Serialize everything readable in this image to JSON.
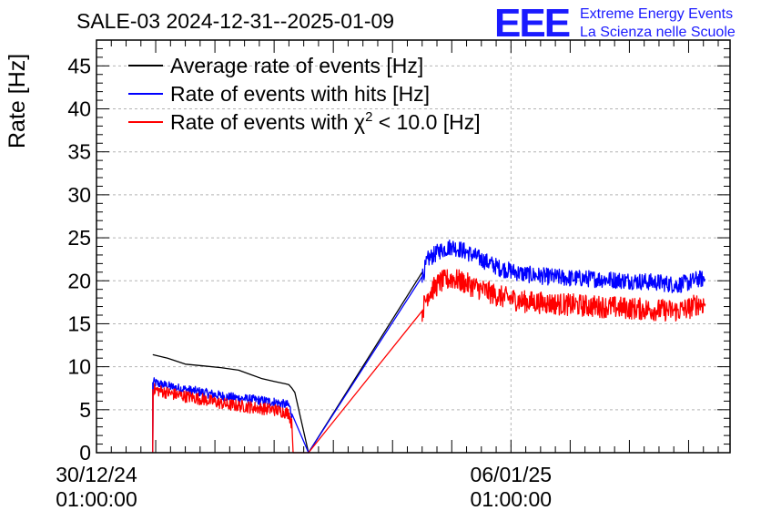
{
  "chart_data": {
    "type": "line",
    "title": "SALE-03 2024-12-31--2025-01-09",
    "ylabel": "Rate [Hz]",
    "xlabel": "",
    "ylim": [
      0,
      48
    ],
    "y_ticks": [
      0,
      5,
      10,
      15,
      20,
      25,
      30,
      35,
      40,
      45
    ],
    "x_tick_labels": [
      {
        "date": "30/12/24",
        "time": "01:00:00",
        "x": 0
      },
      {
        "date": "06/01/25",
        "time": "01:00:00",
        "x": 7
      }
    ],
    "xlim": [
      0,
      10.7
    ],
    "xunit": "days since 30/12/24 01:00:00",
    "grid": true,
    "legend_position": "top-left",
    "legend_entries": [
      "Average rate of events [Hz]",
      "Rate of events with hits [Hz]",
      "Rate of events with χ² < 10.0 [Hz]"
    ],
    "series": [
      {
        "name": "Average rate of events [Hz]",
        "color": "#000000",
        "noise": 0,
        "points": [
          [
            0.95,
            11.4
          ],
          [
            1.2,
            11.0
          ],
          [
            1.5,
            10.3
          ],
          [
            1.8,
            10.1
          ],
          [
            2.1,
            9.9
          ],
          [
            2.4,
            9.6
          ],
          [
            2.6,
            9.1
          ],
          [
            2.8,
            8.6
          ],
          [
            3.0,
            8.3
          ],
          [
            3.2,
            8.0
          ],
          [
            3.25,
            7.9
          ],
          [
            3.3,
            7.5
          ],
          [
            3.35,
            7.0
          ],
          [
            3.58,
            0
          ],
          [
            5.5,
            21
          ]
        ]
      },
      {
        "name": "Rate of events with hits [Hz]",
        "color": "#0000ff",
        "noise": 1.0,
        "points": [
          [
            0.95,
            8.2
          ],
          [
            1.3,
            7.6
          ],
          [
            1.8,
            7.0
          ],
          [
            2.2,
            6.5
          ],
          [
            2.6,
            6.2
          ],
          [
            3.0,
            5.9
          ],
          [
            3.25,
            5.5
          ],
          [
            3.3,
            4.5
          ],
          [
            3.58,
            0
          ],
          [
            5.5,
            20.5
          ],
          [
            5.6,
            22.5
          ],
          [
            5.8,
            23.5
          ],
          [
            6.0,
            24.0
          ],
          [
            6.2,
            23.5
          ],
          [
            6.5,
            22.5
          ],
          [
            6.8,
            21.5
          ],
          [
            7.2,
            20.8
          ],
          [
            7.6,
            20.5
          ],
          [
            8.0,
            20.3
          ],
          [
            8.5,
            20.2
          ],
          [
            9.0,
            20.0
          ],
          [
            9.5,
            19.8
          ],
          [
            9.8,
            19.5
          ],
          [
            10.0,
            19.8
          ],
          [
            10.15,
            20.2
          ],
          [
            10.28,
            20.2
          ]
        ]
      },
      {
        "name": "Rate of events with χ² < 10.0 [Hz]",
        "color": "#ff0000",
        "noise": 1.3,
        "points": [
          [
            0.95,
            7.4
          ],
          [
            1.3,
            6.8
          ],
          [
            1.8,
            6.2
          ],
          [
            2.2,
            5.6
          ],
          [
            2.6,
            5.3
          ],
          [
            3.0,
            5.0
          ],
          [
            3.25,
            4.6
          ],
          [
            3.3,
            3.2
          ],
          [
            3.32,
            0
          ],
          [
            3.58,
            0
          ],
          [
            5.5,
            16.5
          ],
          [
            5.6,
            18.5
          ],
          [
            5.8,
            19.8
          ],
          [
            6.0,
            20.3
          ],
          [
            6.2,
            19.8
          ],
          [
            6.5,
            19.0
          ],
          [
            6.8,
            18.2
          ],
          [
            7.2,
            17.6
          ],
          [
            7.6,
            17.4
          ],
          [
            8.0,
            17.2
          ],
          [
            8.5,
            17.0
          ],
          [
            9.0,
            16.8
          ],
          [
            9.5,
            16.6
          ],
          [
            9.8,
            16.5
          ],
          [
            10.0,
            16.8
          ],
          [
            10.15,
            17.3
          ],
          [
            10.28,
            17.3
          ]
        ]
      }
    ]
  },
  "logo": {
    "letters": "EEE",
    "line1": "Extreme Energy Events",
    "line2": "La Scienza nelle Scuole"
  }
}
